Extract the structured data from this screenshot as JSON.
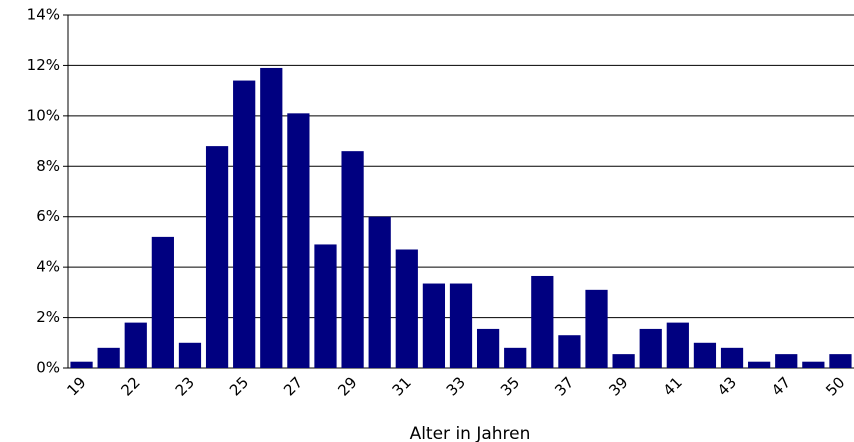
{
  "chart_data": {
    "type": "bar",
    "x_label": "Alter in Jahren",
    "categories": [
      "19",
      null,
      "22",
      null,
      "23",
      null,
      "25",
      null,
      "27",
      null,
      "29",
      null,
      "31",
      null,
      "33",
      null,
      "35",
      null,
      "37",
      null,
      "39",
      null,
      "41",
      null,
      "43",
      null,
      "47",
      null,
      "50"
    ],
    "values": [
      0.25,
      0.8,
      1.8,
      5.2,
      1.0,
      8.8,
      11.4,
      11.9,
      10.1,
      4.9,
      8.6,
      6.0,
      4.7,
      3.35,
      3.35,
      1.55,
      0.8,
      3.65,
      1.3,
      3.1,
      0.55,
      1.55,
      1.8,
      1.0,
      0.8,
      0.25,
      0.55,
      0.25,
      0.55
    ],
    "color": "#000080",
    "ylim": [
      0,
      14
    ],
    "yticks": [
      {
        "value": 0,
        "label": "0%"
      },
      {
        "value": 2,
        "label": "2%"
      },
      {
        "value": 4,
        "label": "4%"
      },
      {
        "value": 6,
        "label": "6%"
      },
      {
        "value": 8,
        "label": "8%"
      },
      {
        "value": 10,
        "label": "10%"
      },
      {
        "value": 12,
        "label": "12%"
      },
      {
        "value": 14,
        "label": "14%"
      }
    ],
    "grid": true
  }
}
